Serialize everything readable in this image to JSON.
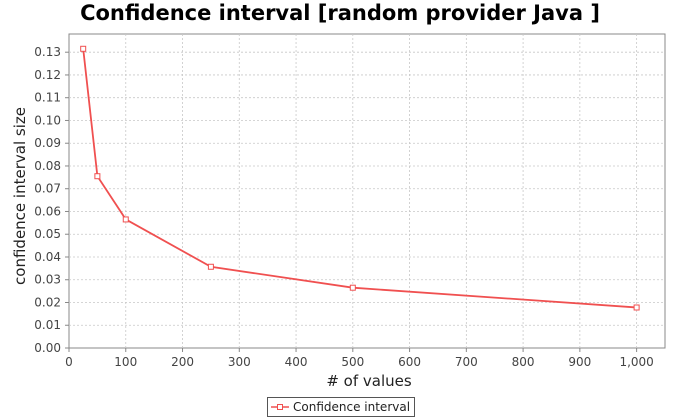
{
  "chart_data": {
    "type": "line",
    "title": "Confidence interval [random provider Java ]",
    "xlabel": "# of values",
    "ylabel": "confidence interval size",
    "xlim": [
      0,
      1050
    ],
    "ylim": [
      0,
      0.138
    ],
    "x_ticks": [
      {
        "value": 0,
        "label": "0"
      },
      {
        "value": 100,
        "label": "100"
      },
      {
        "value": 200,
        "label": "200"
      },
      {
        "value": 300,
        "label": "300"
      },
      {
        "value": 400,
        "label": "400"
      },
      {
        "value": 500,
        "label": "500"
      },
      {
        "value": 600,
        "label": "600"
      },
      {
        "value": 700,
        "label": "700"
      },
      {
        "value": 800,
        "label": "800"
      },
      {
        "value": 900,
        "label": "900"
      },
      {
        "value": 1000,
        "label": "1,000"
      }
    ],
    "y_ticks": [
      {
        "value": 0.0,
        "label": "0.00"
      },
      {
        "value": 0.01,
        "label": "0.01"
      },
      {
        "value": 0.02,
        "label": "0.02"
      },
      {
        "value": 0.03,
        "label": "0.03"
      },
      {
        "value": 0.04,
        "label": "0.04"
      },
      {
        "value": 0.05,
        "label": "0.05"
      },
      {
        "value": 0.06,
        "label": "0.06"
      },
      {
        "value": 0.07,
        "label": "0.07"
      },
      {
        "value": 0.08,
        "label": "0.08"
      },
      {
        "value": 0.09,
        "label": "0.09"
      },
      {
        "value": 0.1,
        "label": "0.10"
      },
      {
        "value": 0.11,
        "label": "0.11"
      },
      {
        "value": 0.12,
        "label": "0.12"
      },
      {
        "value": 0.13,
        "label": "0.13"
      }
    ],
    "grid": true,
    "legend_position": "bottom-center",
    "series": [
      {
        "name": "Confidence interval",
        "color": "#f05050",
        "x": [
          25,
          50,
          100,
          250,
          500,
          1000
        ],
        "y": [
          0.1315,
          0.0755,
          0.0565,
          0.0357,
          0.0265,
          0.0178
        ]
      }
    ]
  }
}
